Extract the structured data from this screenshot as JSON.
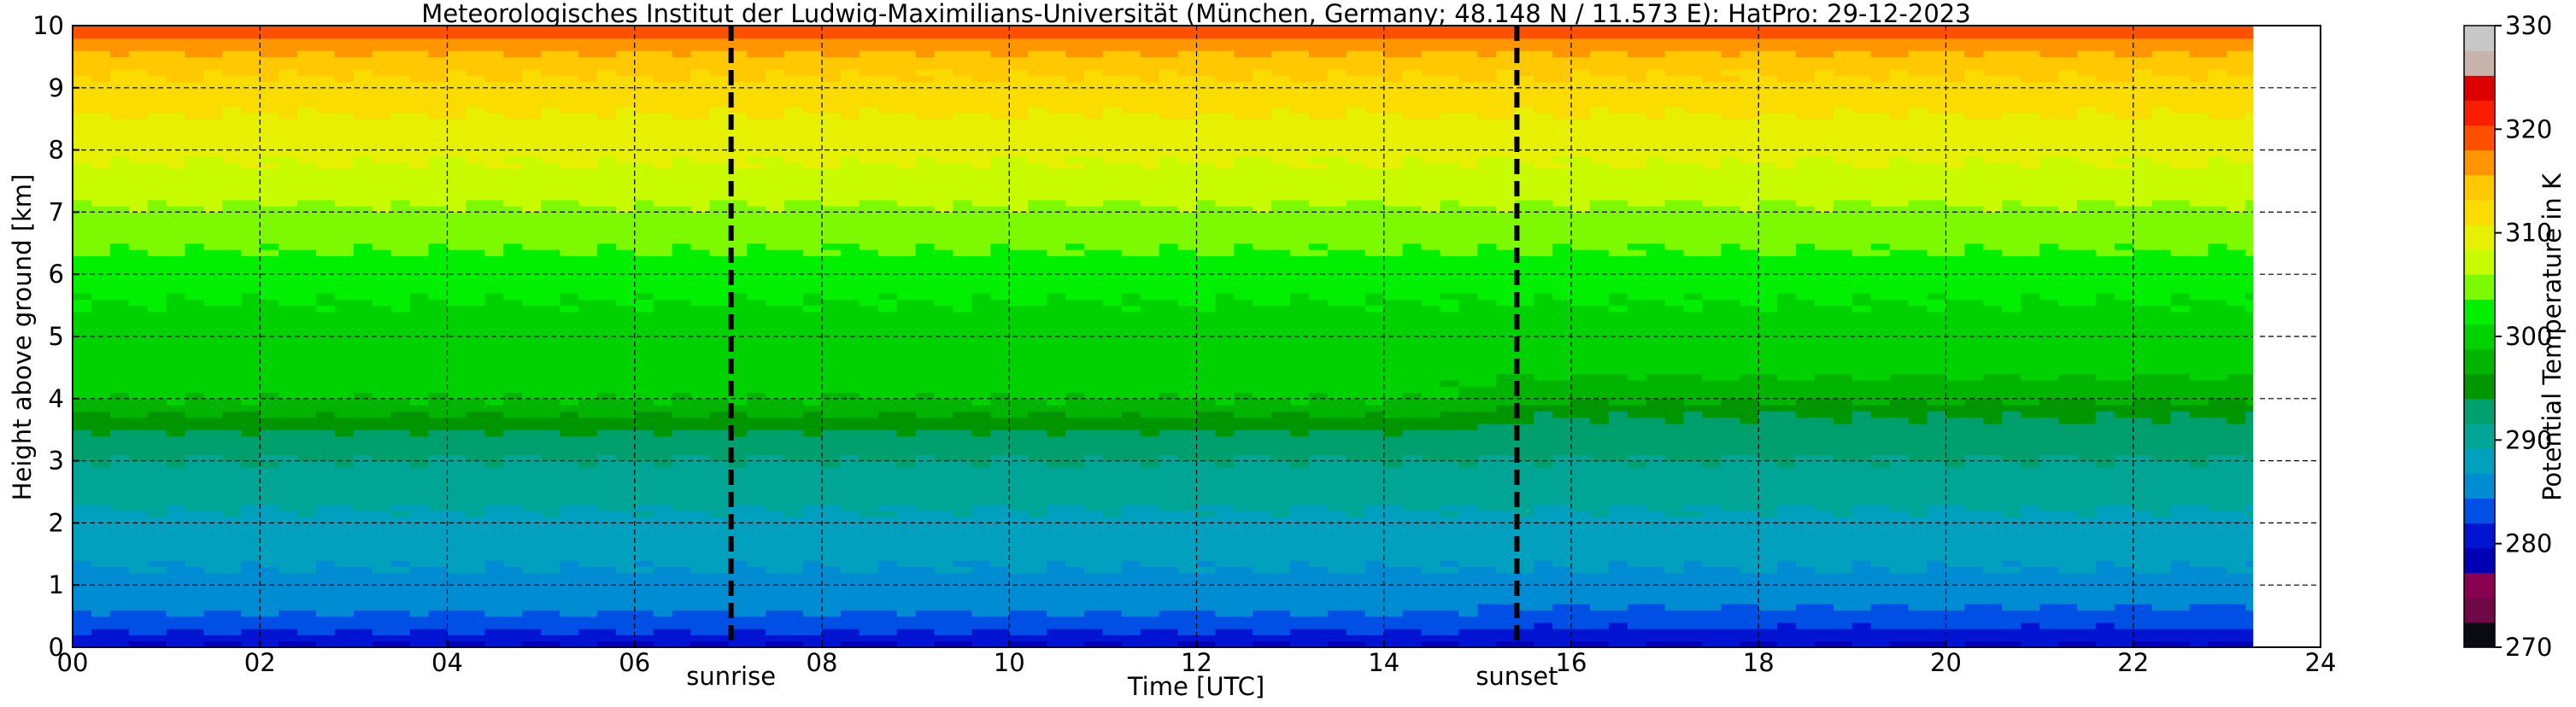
{
  "chart_data": {
    "type": "heatmap",
    "title": "Meteorologisches Institut der Ludwig-Maximilians-Universität (München, Germany; 48.148 N / 11.573 E):    HatPro: 29-12-2023",
    "xlabel": "Time [UTC]",
    "ylabel": "Height above ground [km]",
    "xlim": [
      0,
      24
    ],
    "ylim": [
      0,
      10
    ],
    "x_ticks": [
      0,
      2,
      4,
      6,
      8,
      10,
      12,
      14,
      16,
      18,
      20,
      22,
      24
    ],
    "x_tick_labels": [
      "00",
      "02",
      "04",
      "06",
      "08",
      "10",
      "12",
      "14",
      "16",
      "18",
      "20",
      "22",
      "24"
    ],
    "y_ticks": [
      0,
      1,
      2,
      3,
      4,
      5,
      6,
      7,
      8,
      9,
      10
    ],
    "y_tick_labels": [
      "0",
      "1",
      "2",
      "3",
      "4",
      "5",
      "6",
      "7",
      "8",
      "9",
      "10"
    ],
    "grid": true,
    "colorbar": {
      "label": "Potential Temperature in K",
      "range": [
        270,
        330
      ],
      "ticks": [
        270,
        280,
        290,
        300,
        310,
        320,
        330
      ],
      "tick_labels": [
        "270",
        "280",
        "290",
        "300",
        "310",
        "320",
        "330"
      ],
      "colors": [
        "#0a0a14",
        "#6e0846",
        "#8a0050",
        "#0000b4",
        "#0014d2",
        "#0050e6",
        "#008cd2",
        "#00a0be",
        "#00a596",
        "#00a06e",
        "#009600",
        "#00b400",
        "#00d200",
        "#00f000",
        "#7dfa00",
        "#c8fa00",
        "#e6f000",
        "#fadc00",
        "#ffc800",
        "#ff9600",
        "#ff5000",
        "#fa1e00",
        "#dc0000",
        "#c8b4aa",
        "#c8c8c8"
      ]
    },
    "markers": [
      {
        "label": "sunrise",
        "x": 7.03
      },
      {
        "label": "sunset",
        "x": 15.42
      }
    ],
    "data_end_x": 23.3,
    "profile": {
      "heights_km": [
        0.0,
        0.25,
        0.5,
        0.75,
        1.0,
        1.5,
        2.0,
        2.5,
        3.0,
        3.5,
        3.8,
        4.0,
        4.5,
        5.0,
        5.5,
        6.0,
        6.5,
        7.0,
        7.5,
        8.0,
        8.5,
        9.0,
        9.4,
        9.6,
        9.8,
        10.0
      ],
      "theta_K_day": [
        279,
        282,
        284,
        285.5,
        286,
        287.5,
        288.5,
        290,
        291.5,
        294,
        297,
        299,
        299.5,
        300,
        301,
        302.5,
        304,
        305.5,
        307.5,
        309,
        310.5,
        312.5,
        314,
        316,
        318,
        320
      ],
      "theta_K_after_sunset": [
        279,
        281.5,
        283.5,
        285,
        286,
        287.5,
        288.5,
        290,
        291.5,
        293,
        294.5,
        297,
        299.5,
        300,
        301,
        302.5,
        304,
        305.5,
        307.5,
        309,
        310.5,
        312.5,
        314,
        316,
        318,
        320
      ]
    }
  }
}
